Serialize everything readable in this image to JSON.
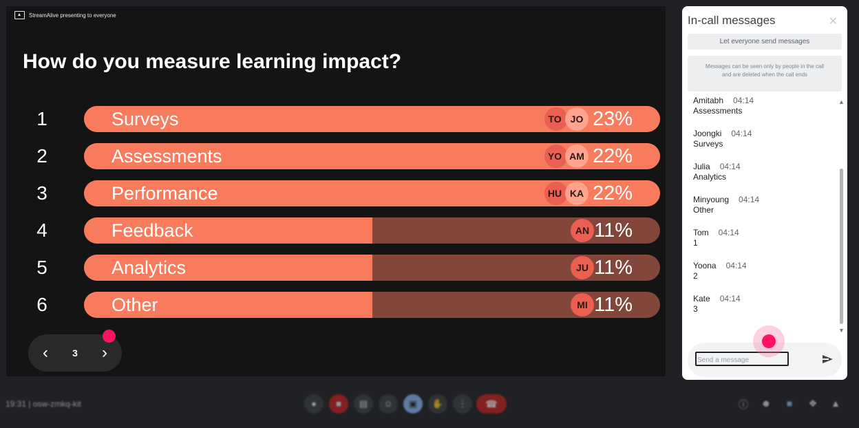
{
  "presenting_banner": "StreamAlive presenting to everyone",
  "slide": {
    "question": "How do you measure learning impact?",
    "options": [
      {
        "rank": "1",
        "label": "Surveys",
        "percent_label": "23%",
        "fill": 1.0,
        "avatars": [
          "TO",
          "JO"
        ]
      },
      {
        "rank": "2",
        "label": "Assessments",
        "percent_label": "22%",
        "fill": 1.0,
        "avatars": [
          "YO",
          "AM"
        ]
      },
      {
        "rank": "3",
        "label": "Performance",
        "percent_label": "22%",
        "fill": 1.0,
        "avatars": [
          "HU",
          "KA"
        ]
      },
      {
        "rank": "4",
        "label": "Feedback",
        "percent_label": "11%",
        "fill": 0.5,
        "avatars": [
          "AN"
        ]
      },
      {
        "rank": "5",
        "label": "Analytics",
        "percent_label": "11%",
        "fill": 0.5,
        "avatars": [
          "JU"
        ]
      },
      {
        "rank": "6",
        "label": "Other",
        "percent_label": "11%",
        "fill": 0.5,
        "avatars": [
          "MI"
        ]
      }
    ],
    "page": "3",
    "prev_icon": "chevron-left-icon",
    "next_icon": "chevron-right-icon"
  },
  "chat": {
    "title": "In-call messages",
    "let_everyone_label": "Let everyone send messages",
    "info_text": "Messages can be seen only by people in the call and are deleted when the call ends",
    "messages": [
      {
        "sender": "Amitabh",
        "time": "04:14",
        "text": "Assessments"
      },
      {
        "sender": "Joongki",
        "time": "04:14",
        "text": "Surveys"
      },
      {
        "sender": "Julia",
        "time": "04:14",
        "text": "Analytics"
      },
      {
        "sender": "Minyoung",
        "time": "04:14",
        "text": "Other"
      },
      {
        "sender": "Tom",
        "time": "04:14",
        "text": "1"
      },
      {
        "sender": "Yoona",
        "time": "04:14",
        "text": "2"
      },
      {
        "sender": "Kate",
        "time": "04:14",
        "text": "3"
      }
    ],
    "input_placeholder": "Send a message"
  },
  "bottom_bar": {
    "meeting_info": "19:31  |  osw-zmkq-kit"
  },
  "colors": {
    "bar_fill": "#f77b5c",
    "bar_track": "#82463a",
    "accent_dot": "#ff1164",
    "end_call": "#c5221f"
  }
}
